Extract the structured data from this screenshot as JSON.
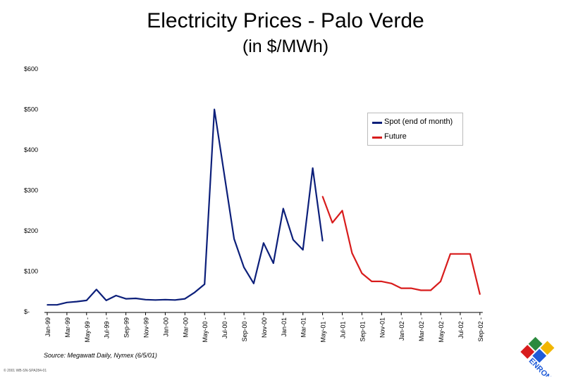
{
  "header": {
    "title": "Electricity Prices - Palo Verde",
    "subtitle": "(in $/MWh)"
  },
  "chart_data": {
    "type": "line",
    "title": "Electricity Prices - Palo Verde",
    "subtitle": "(in $/MWh)",
    "xlabel": "",
    "ylabel": "",
    "ylim": [
      0,
      600
    ],
    "grid": false,
    "legend_position": "right",
    "y_ticks": [
      {
        "value": 0,
        "label": "$-"
      },
      {
        "value": 100,
        "label": "$100"
      },
      {
        "value": 200,
        "label": "$200"
      },
      {
        "value": 300,
        "label": "$300"
      },
      {
        "value": 400,
        "label": "$400"
      },
      {
        "value": 500,
        "label": "$500"
      },
      {
        "value": 600,
        "label": "$600"
      }
    ],
    "x_tick_labels": [
      "Jan-99",
      "Mar-99",
      "May-99",
      "Jul-99",
      "Sep-99",
      "Nov-99",
      "Jan-00",
      "Mar-00",
      "May-00",
      "Jul-00",
      "Sep-00",
      "Nov-00",
      "Jan-01",
      "Mar-01",
      "May-01",
      "Jul-01",
      "Sep-01",
      "Nov-01",
      "Jan-02",
      "Mar-02",
      "May-02",
      "Jul-02",
      "Sep-02"
    ],
    "x_tick_dash": [
      false,
      false,
      true,
      true,
      false,
      false,
      false,
      false,
      true,
      true,
      true,
      false,
      false,
      false,
      true,
      true,
      true,
      false,
      true,
      true,
      true,
      true,
      true
    ],
    "months_start": "Jan-99",
    "months_count": 45,
    "series": [
      {
        "name": "Spot (end of month)",
        "color": "#0c1f7a",
        "points": [
          [
            0,
            17
          ],
          [
            1,
            17
          ],
          [
            2,
            23
          ],
          [
            3,
            25
          ],
          [
            4,
            28
          ],
          [
            5,
            55
          ],
          [
            6,
            28
          ],
          [
            7,
            40
          ],
          [
            8,
            32
          ],
          [
            9,
            33
          ],
          [
            10,
            30
          ],
          [
            11,
            29
          ],
          [
            12,
            30
          ],
          [
            13,
            29
          ],
          [
            14,
            32
          ],
          [
            15,
            48
          ],
          [
            16,
            68
          ],
          [
            17,
            500
          ],
          [
            18,
            340
          ],
          [
            19,
            180
          ],
          [
            20,
            110
          ],
          [
            21,
            70
          ],
          [
            22,
            170
          ],
          [
            23,
            120
          ],
          [
            24,
            255
          ],
          [
            25,
            178
          ],
          [
            26,
            153
          ],
          [
            27,
            355
          ],
          [
            28,
            175
          ],
          [
            28,
            175
          ]
        ]
      },
      {
        "name": "Future",
        "color": "#d81c1c",
        "points": [
          [
            28,
            285
          ],
          [
            29,
            220
          ],
          [
            30,
            250
          ],
          [
            31,
            145
          ],
          [
            32,
            95
          ],
          [
            33,
            75
          ],
          [
            34,
            75
          ],
          [
            35,
            70
          ],
          [
            36,
            58
          ],
          [
            37,
            58
          ],
          [
            38,
            53
          ],
          [
            39,
            53
          ],
          [
            40,
            75
          ],
          [
            41,
            143
          ],
          [
            42,
            143
          ],
          [
            43,
            143
          ],
          [
            44,
            43
          ]
        ]
      }
    ]
  },
  "legend": {
    "items": [
      {
        "label": "Spot (end of month)",
        "color": "#0c1f7a"
      },
      {
        "label": "Future",
        "color": "#d81c1c"
      }
    ]
  },
  "source_note": "Source: Megawatt Daily, Nymex (6/5/01)",
  "footer": "© 2001 WB-SN-SPA284-01",
  "logo": {
    "text": "ENRON"
  }
}
